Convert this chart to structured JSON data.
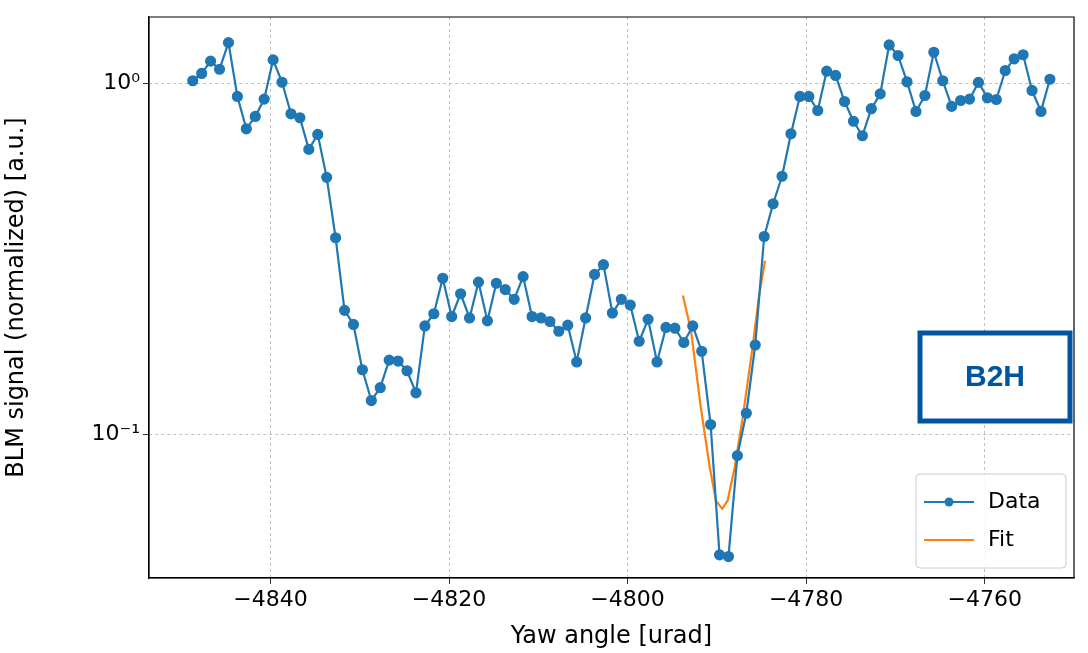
{
  "chart_data": {
    "type": "line",
    "xlabel": "Yaw angle [urad]",
    "ylabel": "BLM signal (normalized) [a.u.]",
    "log": "y",
    "grid": true,
    "legend": "bottom right",
    "xlim": [
      -4853.6,
      -4750
    ],
    "xticks": [
      -4840,
      -4820,
      -4800,
      -4780,
      -4760
    ],
    "ylim": [
      0.039,
      1.55
    ],
    "yticks": [
      {
        "value": 0.1,
        "label": "10⁻¹"
      },
      {
        "value": 1,
        "label": "10⁰"
      }
    ],
    "annotations": [
      "B2H"
    ],
    "series": [
      {
        "name": "Data",
        "color": "#1f77b4",
        "marker": "circle",
        "x": [
          -4848.7,
          -4847.7,
          -4846.7,
          -4845.7,
          -4844.7,
          -4843.7,
          -4842.7,
          -4841.7,
          -4840.7,
          -4839.7,
          -4838.7,
          -4837.7,
          -4836.7,
          -4835.7,
          -4834.7,
          -4833.7,
          -4832.7,
          -4831.7,
          -4830.7,
          -4829.7,
          -4828.7,
          -4827.7,
          -4826.7,
          -4825.7,
          -4824.7,
          -4823.7,
          -4822.7,
          -4821.7,
          -4820.7,
          -4819.7,
          -4818.7,
          -4817.7,
          -4816.7,
          -4815.7,
          -4814.7,
          -4813.7,
          -4812.7,
          -4811.7,
          -4810.7,
          -4809.7,
          -4808.7,
          -4807.7,
          -4806.7,
          -4805.7,
          -4804.7,
          -4803.7,
          -4802.7,
          -4801.7,
          -4800.7,
          -4799.7,
          -4798.7,
          -4797.7,
          -4796.7,
          -4795.7,
          -4794.7,
          -4793.7,
          -4792.7,
          -4791.7,
          -4790.7,
          -4789.7,
          -4788.7,
          -4787.7,
          -4786.7,
          -4785.7,
          -4784.7,
          -4783.7,
          -4782.7,
          -4781.7,
          -4780.7,
          -4779.7,
          -4778.7,
          -4777.7,
          -4776.7,
          -4775.7,
          -4774.7,
          -4773.7,
          -4772.7,
          -4771.7,
          -4770.7,
          -4769.7,
          -4768.7,
          -4767.7,
          -4766.7,
          -4765.7,
          -4764.7,
          -4763.7,
          -4762.7,
          -4761.7,
          -4760.7,
          -4759.7,
          -4758.7,
          -4757.7,
          -4756.7,
          -4755.7,
          -4754.7,
          -4753.7,
          -4752.7
        ],
        "values": [
          1.02,
          1.07,
          1.16,
          1.1,
          1.31,
          0.92,
          0.744,
          0.807,
          0.904,
          1.17,
          1.01,
          0.821,
          0.8,
          0.65,
          0.717,
          0.541,
          0.364,
          0.226,
          0.206,
          0.153,
          0.125,
          0.136,
          0.163,
          0.162,
          0.152,
          0.1315,
          0.204,
          0.221,
          0.279,
          0.217,
          0.252,
          0.215,
          0.272,
          0.211,
          0.27,
          0.259,
          0.243,
          0.282,
          0.217,
          0.215,
          0.21,
          0.197,
          0.205,
          0.161,
          0.215,
          0.286,
          0.305,
          0.222,
          0.243,
          0.234,
          0.1845,
          0.213,
          0.161,
          0.202,
          0.201,
          0.183,
          0.204,
          0.1727,
          0.1068,
          0.0454,
          0.0449,
          0.0871,
          0.115,
          0.18,
          0.367,
          0.455,
          0.545,
          0.72,
          0.92,
          0.92,
          0.839,
          1.086,
          1.056,
          0.89,
          0.782,
          0.711,
          0.849,
          0.936,
          1.29,
          1.204,
          1.013,
          0.834,
          0.926,
          1.23,
          1.02,
          0.862,
          0.896,
          0.904,
          1.009,
          0.912,
          0.902,
          1.091,
          1.178,
          1.21,
          0.957,
          0.834,
          1.03
        ]
      },
      {
        "name": "Fit",
        "color": "#ff7f0e",
        "marker": "none",
        "x": [
          -4793.8,
          -4792.9,
          -4791.8,
          -4790.8,
          -4790.1,
          -4789.4,
          -4788.8,
          -4788.0,
          -4787.1,
          -4786.0,
          -4785.3,
          -4784.6
        ],
        "values": [
          0.249,
          0.198,
          0.1197,
          0.0807,
          0.0648,
          0.0614,
          0.0648,
          0.0807,
          0.112,
          0.1774,
          0.2466,
          0.313
        ]
      }
    ]
  }
}
